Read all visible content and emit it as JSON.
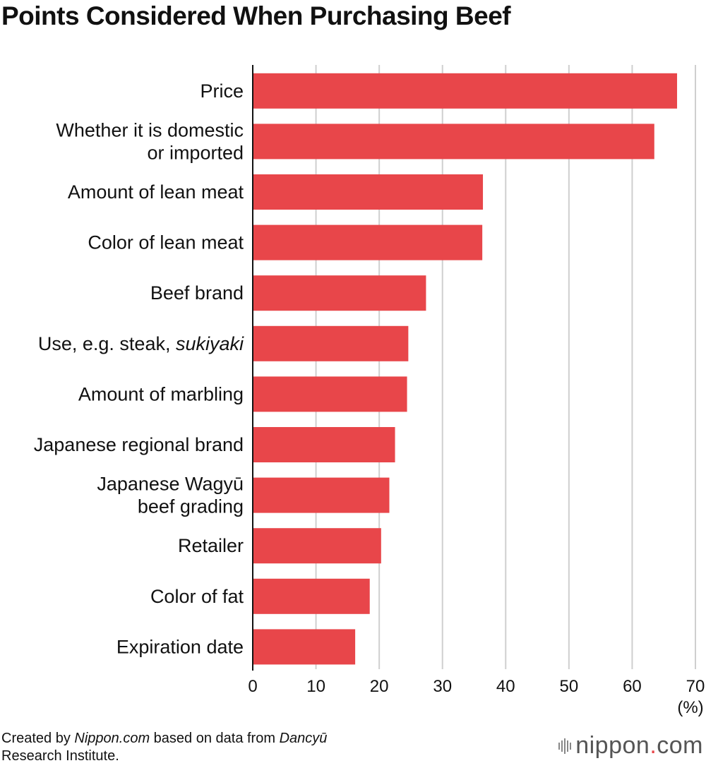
{
  "chart_data": {
    "type": "bar",
    "orientation": "horizontal",
    "title": "Points Considered When Purchasing Beef",
    "categories": [
      [
        "Price"
      ],
      [
        "Whether it is domestic",
        "or imported"
      ],
      [
        "Amount of lean meat"
      ],
      [
        "Color of lean meat"
      ],
      [
        "Beef brand"
      ],
      [
        "Use, e.g. steak, ",
        "sukiyaki"
      ],
      [
        "Amount of marbling"
      ],
      [
        "Japanese regional brand"
      ],
      [
        "Japanese Wagyū",
        "beef grading"
      ],
      [
        "Retailer"
      ],
      [
        "Color of fat"
      ],
      [
        "Expiration date"
      ]
    ],
    "values": [
      67.1,
      63.5,
      36.4,
      36.3,
      27.4,
      24.6,
      24.4,
      22.5,
      21.6,
      20.3,
      18.5,
      16.2
    ],
    "xlim": [
      0,
      70
    ],
    "xticks": [
      0,
      10,
      20,
      30,
      40,
      50,
      60,
      70
    ],
    "xunit": "(%)",
    "grid": true,
    "bar_color": "#e8464a"
  },
  "footer": {
    "created_by": "Created by ",
    "source_name": "Nippon.com",
    "based_on": " based on data from ",
    "publisher": "Dancyū",
    "line2": "Research Institute."
  },
  "logo": {
    "name": "nippon",
    "dot": ".",
    "tld": "com"
  },
  "colors": {
    "bar": "#e8464a",
    "grid": "#cfcfcf",
    "axis": "#111111"
  }
}
